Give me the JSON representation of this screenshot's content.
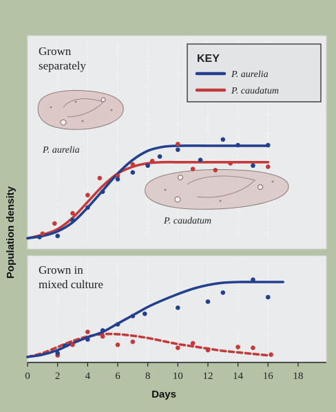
{
  "colors": {
    "aurelia": "#23408f",
    "caudatum": "#c23a3a"
  },
  "chart_data": [
    {
      "type": "line",
      "title": "Grown separately",
      "title_lines": [
        "Grown",
        "separately"
      ],
      "xlabel": "Days",
      "ylabel": "Population density",
      "xlim": [
        0,
        18
      ],
      "grid": true,
      "legend": {
        "title": "KEY",
        "placement": "top-right",
        "entries": [
          "P. aurelia",
          "P. caudatum"
        ]
      },
      "annotations": [
        "P. aurelia",
        "P. caudatum"
      ],
      "series": [
        {
          "name": "P. aurelia",
          "color": "#23408f",
          "curve": [
            [
              0,
              0.01
            ],
            [
              1,
              0.03
            ],
            [
              2,
              0.07
            ],
            [
              3,
              0.15
            ],
            [
              4,
              0.28
            ],
            [
              5,
              0.43
            ],
            [
              6,
              0.58
            ],
            [
              7,
              0.7
            ],
            [
              8,
              0.78
            ],
            [
              9,
              0.815
            ],
            [
              10,
              0.825
            ],
            [
              12,
              0.825
            ],
            [
              14,
              0.825
            ],
            [
              16,
              0.825
            ]
          ],
          "points": [
            [
              0.8,
              0.02
            ],
            [
              2,
              0.03
            ],
            [
              3,
              0.17
            ],
            [
              4,
              0.28
            ],
            [
              5,
              0.42
            ],
            [
              6,
              0.53
            ],
            [
              7,
              0.59
            ],
            [
              8,
              0.65
            ],
            [
              8.8,
              0.73
            ],
            [
              10,
              0.79
            ],
            [
              11.5,
              0.7
            ],
            [
              13,
              0.88
            ],
            [
              14,
              0.83
            ],
            [
              15,
              0.65
            ],
            [
              16,
              0.83
            ]
          ]
        },
        {
          "name": "P. caudatum",
          "color": "#c23a3a",
          "curve": [
            [
              0,
              0.01
            ],
            [
              1,
              0.04
            ],
            [
              2,
              0.09
            ],
            [
              3,
              0.19
            ],
            [
              4,
              0.33
            ],
            [
              5,
              0.47
            ],
            [
              6,
              0.58
            ],
            [
              7,
              0.64
            ],
            [
              8,
              0.67
            ],
            [
              9,
              0.68
            ],
            [
              10,
              0.68
            ],
            [
              12,
              0.68
            ],
            [
              14,
              0.68
            ],
            [
              16,
              0.68
            ]
          ],
          "points": [
            [
              1,
              0.05
            ],
            [
              1.8,
              0.14
            ],
            [
              3,
              0.23
            ],
            [
              4,
              0.39
            ],
            [
              4.8,
              0.54
            ],
            [
              6,
              0.56
            ],
            [
              7,
              0.66
            ],
            [
              8.3,
              0.69
            ],
            [
              10,
              0.84
            ],
            [
              11,
              0.62
            ],
            [
              12.5,
              0.61
            ],
            [
              13.5,
              0.67
            ],
            [
              16,
              0.64
            ]
          ]
        }
      ]
    },
    {
      "type": "line",
      "title": "Grown in mixed culture",
      "title_lines": [
        "Grown in",
        "mixed culture"
      ],
      "xlabel": "Days",
      "ylabel": "Population density",
      "xlim": [
        0,
        18
      ],
      "xticks": [
        0,
        2,
        4,
        6,
        8,
        10,
        12,
        14,
        16,
        18
      ],
      "grid": true,
      "series": [
        {
          "name": "P. aurelia",
          "color": "#23408f",
          "curve": [
            [
              0,
              0.01
            ],
            [
              1,
              0.04
            ],
            [
              2,
              0.1
            ],
            [
              3,
              0.19
            ],
            [
              4,
              0.27
            ],
            [
              5,
              0.34
            ],
            [
              6,
              0.45
            ],
            [
              7,
              0.56
            ],
            [
              8,
              0.67
            ],
            [
              9,
              0.76
            ],
            [
              10,
              0.84
            ],
            [
              11,
              0.91
            ],
            [
              12,
              0.96
            ],
            [
              13,
              0.99
            ],
            [
              14,
              1.0
            ],
            [
              15,
              1.0
            ],
            [
              16,
              1.0
            ],
            [
              17,
              1.0
            ]
          ],
          "points": [
            [
              2,
              0.06
            ],
            [
              2.5,
              0.16
            ],
            [
              4,
              0.24
            ],
            [
              5,
              0.36
            ],
            [
              6,
              0.44
            ],
            [
              7,
              0.55
            ],
            [
              7.8,
              0.58
            ],
            [
              10,
              0.66
            ],
            [
              12,
              0.74
            ],
            [
              13,
              0.86
            ],
            [
              15,
              1.03
            ],
            [
              16,
              0.8
            ]
          ]
        },
        {
          "name": "P. caudatum",
          "color": "#c23a3a",
          "curve": [
            [
              0,
              0.01
            ],
            [
              1,
              0.06
            ],
            [
              2,
              0.14
            ],
            [
              3,
              0.22
            ],
            [
              4,
              0.28
            ],
            [
              5,
              0.31
            ],
            [
              6,
              0.31
            ],
            [
              7,
              0.29
            ],
            [
              8,
              0.26
            ],
            [
              9,
              0.22
            ],
            [
              10,
              0.18
            ],
            [
              11,
              0.15
            ],
            [
              12,
              0.12
            ],
            [
              13,
              0.09
            ],
            [
              14,
              0.07
            ],
            [
              15,
              0.05
            ],
            [
              16,
              0.03
            ]
          ],
          "points": [
            [
              2,
              0.03
            ],
            [
              3,
              0.17
            ],
            [
              4,
              0.34
            ],
            [
              5,
              0.28
            ],
            [
              6,
              0.17
            ],
            [
              7,
              0.21
            ],
            [
              10,
              0.13
            ],
            [
              11,
              0.19
            ],
            [
              12,
              0.1
            ],
            [
              14,
              0.14
            ],
            [
              15,
              0.13
            ],
            [
              16.2,
              0.04
            ]
          ]
        }
      ]
    }
  ]
}
